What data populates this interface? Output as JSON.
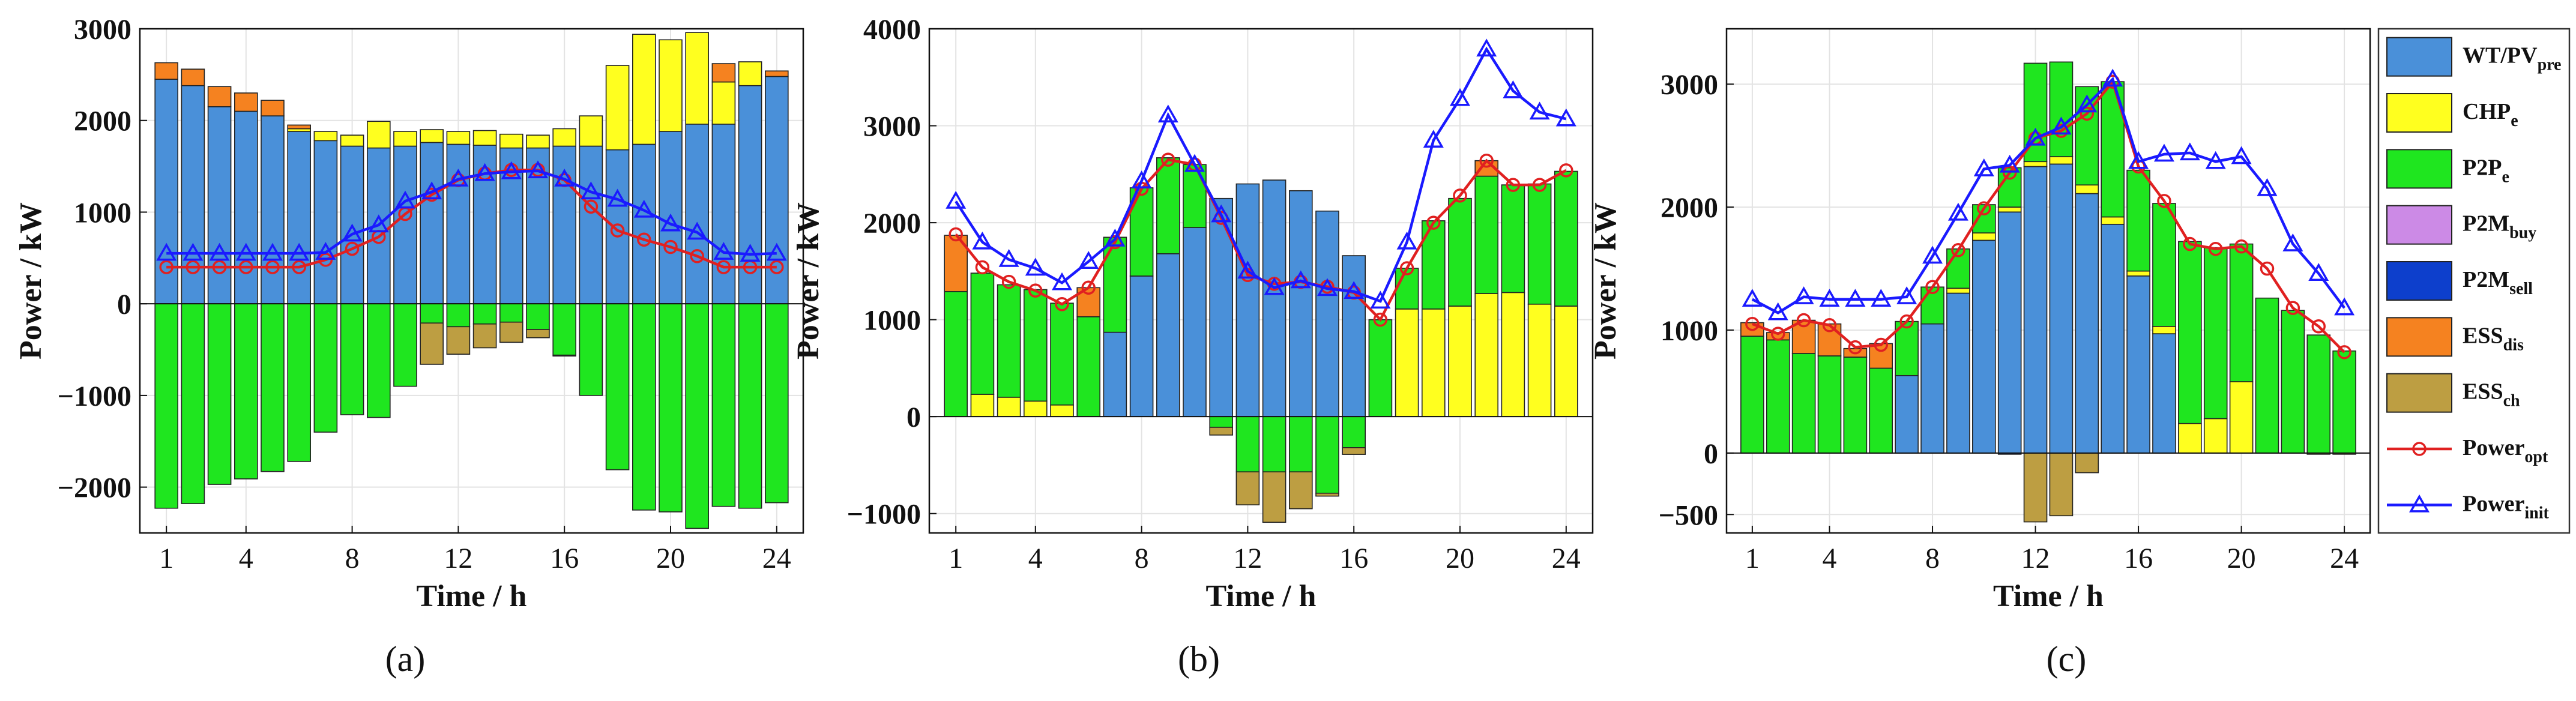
{
  "figure": {
    "x_label": "Time / h",
    "y_label": "Power / kW",
    "panel_labels": [
      "(a)",
      "(b)",
      "(c)"
    ],
    "legend": [
      {
        "key": "wt",
        "label": "WT/PV",
        "sub": "pre",
        "kind": "patch",
        "color": "#4a90d9"
      },
      {
        "key": "chp",
        "label": "CHP",
        "sub": "e",
        "kind": "patch",
        "color": "#ffff1f"
      },
      {
        "key": "p2p",
        "label": "P2P",
        "sub": "e",
        "kind": "patch",
        "color": "#1fe61f"
      },
      {
        "key": "p2mb",
        "label": "P2M",
        "sub": "buy",
        "kind": "patch",
        "color": "#cc8ae6"
      },
      {
        "key": "p2ms",
        "label": "P2M",
        "sub": "sell",
        "kind": "patch",
        "color": "#0d3fcc"
      },
      {
        "key": "essd",
        "label": "ESS",
        "sub": "dis",
        "kind": "patch",
        "color": "#f58220"
      },
      {
        "key": "essc",
        "label": "ESS",
        "sub": "ch",
        "kind": "patch",
        "color": "#bd9e42"
      },
      {
        "key": "opt",
        "label": "Power",
        "sub": "opt",
        "kind": "line",
        "color": "#e02020",
        "marker": "circle"
      },
      {
        "key": "init",
        "label": "Power",
        "sub": "init",
        "kind": "line",
        "color": "#1a1aff",
        "marker": "triangle"
      }
    ]
  },
  "chart_data": [
    {
      "type": "bar",
      "panel": "(a)",
      "title": "",
      "xlabel": "Time / h",
      "ylabel": "Power / kW",
      "x": [
        1,
        2,
        3,
        4,
        5,
        6,
        7,
        8,
        9,
        10,
        11,
        12,
        13,
        14,
        15,
        16,
        17,
        18,
        19,
        20,
        21,
        22,
        23,
        24
      ],
      "xticks": [
        1,
        4,
        8,
        12,
        16,
        20,
        24
      ],
      "xlim": [
        0,
        25
      ],
      "ylim": [
        -2500,
        3000
      ],
      "yticks": [
        -2000,
        -1000,
        0,
        1000,
        2000,
        3000
      ],
      "ytick_labels": [
        "−2000",
        "−1000",
        "0",
        "1000",
        "2000",
        "3000"
      ],
      "grid": true,
      "stacked": true,
      "series": [
        {
          "name": "WT/PVpre",
          "values": [
            2450,
            2380,
            2150,
            2100,
            2050,
            1880,
            1780,
            1720,
            1700,
            1720,
            1760,
            1740,
            1730,
            1700,
            1700,
            1720,
            1720,
            1680,
            1740,
            1880,
            1960,
            1960,
            2380,
            2480
          ]
        },
        {
          "name": "CHPe",
          "values": [
            0,
            0,
            0,
            0,
            0,
            30,
            100,
            120,
            290,
            160,
            140,
            140,
            160,
            150,
            140,
            190,
            330,
            920,
            1200,
            1000,
            1000,
            460,
            260,
            0
          ]
        },
        {
          "name": "P2Pe",
          "values": [
            -2230,
            -2180,
            -1970,
            -1910,
            -1830,
            -1720,
            -1400,
            -1210,
            -1240,
            -900,
            -210,
            -250,
            -220,
            -200,
            -280,
            -560,
            -1000,
            -1810,
            -2250,
            -2270,
            -2450,
            -2210,
            -2230,
            -2170
          ]
        },
        {
          "name": "P2Mbuy",
          "values": [
            0,
            0,
            0,
            0,
            0,
            0,
            0,
            0,
            0,
            0,
            0,
            0,
            0,
            0,
            0,
            0,
            0,
            0,
            0,
            0,
            0,
            0,
            0,
            0
          ]
        },
        {
          "name": "P2Msell",
          "values": [
            0,
            0,
            0,
            0,
            0,
            0,
            0,
            0,
            0,
            0,
            0,
            0,
            0,
            0,
            0,
            0,
            0,
            0,
            0,
            0,
            0,
            0,
            0,
            0
          ]
        },
        {
          "name": "ESSdis",
          "values": [
            180,
            180,
            220,
            200,
            170,
            40,
            0,
            0,
            0,
            0,
            0,
            0,
            0,
            0,
            0,
            0,
            0,
            0,
            0,
            0,
            0,
            200,
            0,
            60
          ]
        },
        {
          "name": "ESSch",
          "values": [
            0,
            0,
            0,
            0,
            0,
            0,
            0,
            0,
            0,
            0,
            -450,
            -300,
            -260,
            -220,
            -90,
            -10,
            0,
            0,
            0,
            0,
            0,
            0,
            0,
            0
          ]
        },
        {
          "name": "Poweropt",
          "kind": "line",
          "values": [
            400,
            400,
            400,
            400,
            400,
            400,
            480,
            600,
            730,
            980,
            1190,
            1350,
            1420,
            1460,
            1460,
            1350,
            1060,
            800,
            700,
            620,
            520,
            400,
            400,
            400
          ]
        },
        {
          "name": "Powerinit",
          "kind": "line",
          "values": [
            550,
            550,
            550,
            550,
            550,
            550,
            560,
            760,
            860,
            1120,
            1220,
            1360,
            1420,
            1440,
            1450,
            1360,
            1220,
            1140,
            1020,
            870,
            780,
            560,
            540,
            550
          ]
        }
      ]
    },
    {
      "type": "bar",
      "panel": "(b)",
      "title": "",
      "xlabel": "Time / h",
      "ylabel": "Power / kW",
      "x": [
        1,
        2,
        3,
        4,
        5,
        6,
        7,
        8,
        9,
        10,
        11,
        12,
        13,
        14,
        15,
        16,
        17,
        18,
        19,
        20,
        21,
        22,
        23,
        24
      ],
      "xticks": [
        1,
        4,
        8,
        12,
        16,
        20,
        24
      ],
      "xlim": [
        0,
        25
      ],
      "ylim": [
        -1200,
        4000
      ],
      "yticks": [
        -1000,
        0,
        1000,
        2000,
        3000,
        4000
      ],
      "ytick_labels": [
        "−1000",
        "0",
        "1000",
        "2000",
        "3000",
        "4000"
      ],
      "grid": true,
      "stacked": true,
      "series": [
        {
          "name": "WT/PVpre",
          "values": [
            0,
            0,
            0,
            0,
            0,
            0,
            870,
            1450,
            1680,
            1950,
            2250,
            2400,
            2440,
            2330,
            2120,
            1660,
            0,
            0,
            0,
            0,
            0,
            0,
            0,
            0
          ]
        },
        {
          "name": "CHPe",
          "values": [
            0,
            230,
            200,
            160,
            120,
            0,
            0,
            0,
            0,
            0,
            0,
            0,
            0,
            0,
            0,
            0,
            0,
            1110,
            1110,
            1140,
            1270,
            1280,
            1160,
            1140
          ]
        },
        {
          "name": "P2Pe",
          "values": [
            1290,
            1250,
            1160,
            1150,
            1050,
            1030,
            980,
            910,
            990,
            650,
            -110,
            -570,
            -570,
            -570,
            -790,
            -320,
            1000,
            420,
            910,
            1110,
            1210,
            1110,
            1240,
            1390
          ]
        },
        {
          "name": "P2Mbuy",
          "values": [
            0,
            0,
            0,
            0,
            0,
            0,
            0,
            0,
            0,
            0,
            0,
            0,
            0,
            0,
            0,
            0,
            0,
            0,
            0,
            0,
            0,
            0,
            0,
            0
          ]
        },
        {
          "name": "P2Msell",
          "values": [
            0,
            0,
            0,
            0,
            0,
            0,
            0,
            0,
            0,
            0,
            0,
            0,
            0,
            0,
            0,
            0,
            0,
            0,
            0,
            0,
            0,
            0,
            0,
            0
          ]
        },
        {
          "name": "ESSdis",
          "values": [
            580,
            0,
            0,
            0,
            0,
            300,
            0,
            0,
            0,
            0,
            0,
            0,
            0,
            0,
            0,
            0,
            0,
            0,
            0,
            0,
            160,
            0,
            0,
            0
          ]
        },
        {
          "name": "ESSch",
          "values": [
            0,
            0,
            0,
            0,
            0,
            0,
            0,
            0,
            0,
            0,
            -80,
            -340,
            -520,
            -380,
            -30,
            -70,
            0,
            0,
            0,
            0,
            0,
            0,
            0,
            0
          ]
        },
        {
          "name": "Poweropt",
          "kind": "line",
          "values": [
            1880,
            1540,
            1390,
            1300,
            1160,
            1330,
            1800,
            2350,
            2650,
            2600,
            2050,
            1460,
            1370,
            1390,
            1340,
            1280,
            1000,
            1530,
            2000,
            2280,
            2640,
            2390,
            2390,
            2540
          ]
        },
        {
          "name": "Powerinit",
          "kind": "line",
          "values": [
            2220,
            1800,
            1620,
            1530,
            1380,
            1600,
            1830,
            2430,
            3110,
            2600,
            2080,
            1500,
            1330,
            1400,
            1320,
            1290,
            1190,
            1800,
            2850,
            3280,
            3790,
            3360,
            3140,
            3070
          ]
        }
      ]
    },
    {
      "type": "bar",
      "panel": "(c)",
      "title": "",
      "xlabel": "Time / h",
      "ylabel": "Power / kW",
      "x": [
        1,
        2,
        3,
        4,
        5,
        6,
        7,
        8,
        9,
        10,
        11,
        12,
        13,
        14,
        15,
        16,
        17,
        18,
        19,
        20,
        21,
        22,
        23,
        24
      ],
      "xticks": [
        1,
        4,
        8,
        12,
        16,
        20,
        24
      ],
      "xlim": [
        0,
        25
      ],
      "ylim": [
        -650,
        3450
      ],
      "yticks": [
        -500,
        0,
        1000,
        2000,
        3000
      ],
      "ytick_labels": [
        "−500",
        "0",
        "1000",
        "2000",
        "3000"
      ],
      "grid": true,
      "stacked": true,
      "series": [
        {
          "name": "WT/PVpre",
          "values": [
            0,
            0,
            0,
            0,
            0,
            0,
            630,
            1050,
            1300,
            1730,
            1960,
            2330,
            2350,
            2110,
            1860,
            1440,
            970,
            0,
            0,
            0,
            0,
            0,
            0,
            0
          ]
        },
        {
          "name": "CHPe",
          "values": [
            0,
            0,
            0,
            0,
            0,
            0,
            0,
            0,
            40,
            60,
            40,
            40,
            60,
            70,
            60,
            40,
            60,
            240,
            280,
            580,
            0,
            0,
            0,
            0
          ]
        },
        {
          "name": "P2Pe",
          "values": [
            950,
            920,
            810,
            790,
            780,
            690,
            440,
            300,
            320,
            230,
            320,
            800,
            770,
            800,
            1100,
            820,
            1000,
            1480,
            1390,
            1120,
            1260,
            1160,
            960,
            830
          ]
        },
        {
          "name": "P2Mbuy",
          "values": [
            0,
            0,
            0,
            0,
            0,
            0,
            0,
            0,
            0,
            0,
            0,
            0,
            0,
            0,
            0,
            0,
            0,
            0,
            0,
            0,
            0,
            0,
            0,
            0
          ]
        },
        {
          "name": "P2Msell",
          "values": [
            0,
            0,
            0,
            0,
            0,
            0,
            0,
            0,
            0,
            0,
            -10,
            0,
            0,
            0,
            0,
            0,
            0,
            0,
            0,
            0,
            0,
            0,
            0,
            0
          ]
        },
        {
          "name": "ESSdis",
          "values": [
            110,
            60,
            270,
            260,
            70,
            200,
            0,
            0,
            0,
            0,
            0,
            0,
            0,
            0,
            0,
            0,
            0,
            0,
            0,
            0,
            0,
            0,
            0,
            0
          ]
        },
        {
          "name": "ESSch",
          "values": [
            0,
            0,
            0,
            0,
            0,
            0,
            0,
            0,
            0,
            0,
            0,
            -560,
            -510,
            -160,
            0,
            0,
            0,
            0,
            0,
            0,
            0,
            0,
            -10,
            -10
          ]
        },
        {
          "name": "Poweropt",
          "kind": "line",
          "values": [
            1050,
            970,
            1080,
            1040,
            860,
            880,
            1070,
            1350,
            1650,
            1990,
            2280,
            2560,
            2620,
            2760,
            3020,
            2330,
            2050,
            1700,
            1660,
            1680,
            1500,
            1180,
            1030,
            820
          ]
        },
        {
          "name": "Powerinit",
          "kind": "line",
          "values": [
            1250,
            1140,
            1270,
            1250,
            1250,
            1250,
            1270,
            1600,
            1950,
            2310,
            2340,
            2560,
            2650,
            2830,
            3040,
            2370,
            2430,
            2440,
            2370,
            2410,
            2150,
            1700,
            1460,
            1180
          ]
        }
      ]
    }
  ]
}
